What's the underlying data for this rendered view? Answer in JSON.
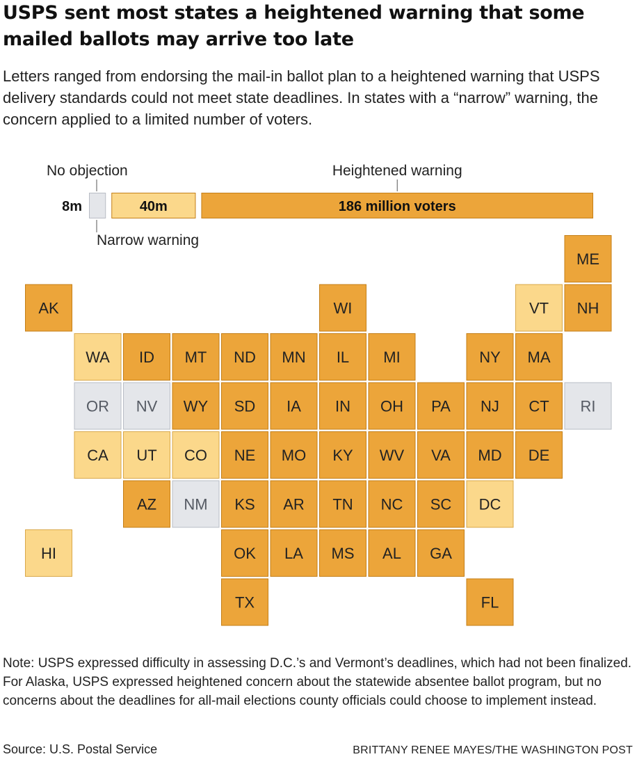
{
  "title": "USPS sent most states a heightened warning that some mailed ballots may arrive too late",
  "subtitle": "Letters ranged from endorsing the mail-in ballot plan to a heightened warning that USPS delivery standards could not meet state deadlines. In states with a “narrow” warning, the concern applied to a limited number of voters.",
  "note": "Note: USPS expressed difficulty in assessing D.C.’s and Vermont’s deadlines, which had not been finalized. For Alaska, USPS expressed heightened concern about the statewide absentee ballot program, but no concerns about the deadlines for all-mail elections county officials could choose to implement instead.",
  "source": "Source: U.S. Postal Service",
  "credit": "BRITTANY RENEE MAYES/THE WASHINGTON POST",
  "chart_data": {
    "type": "tile-map",
    "colors": {
      "none": "#e4e6ea",
      "narrow": "#fbd88b",
      "heightened": "#eca53a"
    },
    "summary": [
      {
        "key": "none",
        "name": "No objection",
        "value": 8,
        "label": "8m"
      },
      {
        "key": "narrow",
        "name": "Narrow warning",
        "value": 40,
        "label": "40m"
      },
      {
        "key": "heightened",
        "name": "Heightened warning",
        "value": 186,
        "label": "186 million voters"
      }
    ],
    "states": [
      {
        "id": "ME",
        "col": 11,
        "row": 0,
        "cat": "heightened"
      },
      {
        "id": "AK",
        "col": 0,
        "row": 1,
        "cat": "heightened"
      },
      {
        "id": "WI",
        "col": 6,
        "row": 1,
        "cat": "heightened"
      },
      {
        "id": "VT",
        "col": 10,
        "row": 1,
        "cat": "narrow"
      },
      {
        "id": "NH",
        "col": 11,
        "row": 1,
        "cat": "heightened"
      },
      {
        "id": "WA",
        "col": 1,
        "row": 2,
        "cat": "narrow"
      },
      {
        "id": "ID",
        "col": 2,
        "row": 2,
        "cat": "heightened"
      },
      {
        "id": "MT",
        "col": 3,
        "row": 2,
        "cat": "heightened"
      },
      {
        "id": "ND",
        "col": 4,
        "row": 2,
        "cat": "heightened"
      },
      {
        "id": "MN",
        "col": 5,
        "row": 2,
        "cat": "heightened"
      },
      {
        "id": "IL",
        "col": 6,
        "row": 2,
        "cat": "heightened"
      },
      {
        "id": "MI",
        "col": 7,
        "row": 2,
        "cat": "heightened"
      },
      {
        "id": "NY",
        "col": 9,
        "row": 2,
        "cat": "heightened"
      },
      {
        "id": "MA",
        "col": 10,
        "row": 2,
        "cat": "heightened"
      },
      {
        "id": "OR",
        "col": 1,
        "row": 3,
        "cat": "none"
      },
      {
        "id": "NV",
        "col": 2,
        "row": 3,
        "cat": "none"
      },
      {
        "id": "WY",
        "col": 3,
        "row": 3,
        "cat": "heightened"
      },
      {
        "id": "SD",
        "col": 4,
        "row": 3,
        "cat": "heightened"
      },
      {
        "id": "IA",
        "col": 5,
        "row": 3,
        "cat": "heightened"
      },
      {
        "id": "IN",
        "col": 6,
        "row": 3,
        "cat": "heightened"
      },
      {
        "id": "OH",
        "col": 7,
        "row": 3,
        "cat": "heightened"
      },
      {
        "id": "PA",
        "col": 8,
        "row": 3,
        "cat": "heightened"
      },
      {
        "id": "NJ",
        "col": 9,
        "row": 3,
        "cat": "heightened"
      },
      {
        "id": "CT",
        "col": 10,
        "row": 3,
        "cat": "heightened"
      },
      {
        "id": "RI",
        "col": 11,
        "row": 3,
        "cat": "none"
      },
      {
        "id": "CA",
        "col": 1,
        "row": 4,
        "cat": "narrow"
      },
      {
        "id": "UT",
        "col": 2,
        "row": 4,
        "cat": "narrow"
      },
      {
        "id": "CO",
        "col": 3,
        "row": 4,
        "cat": "narrow"
      },
      {
        "id": "NE",
        "col": 4,
        "row": 4,
        "cat": "heightened"
      },
      {
        "id": "MO",
        "col": 5,
        "row": 4,
        "cat": "heightened"
      },
      {
        "id": "KY",
        "col": 6,
        "row": 4,
        "cat": "heightened"
      },
      {
        "id": "WV",
        "col": 7,
        "row": 4,
        "cat": "heightened"
      },
      {
        "id": "VA",
        "col": 8,
        "row": 4,
        "cat": "heightened"
      },
      {
        "id": "MD",
        "col": 9,
        "row": 4,
        "cat": "heightened"
      },
      {
        "id": "DE",
        "col": 10,
        "row": 4,
        "cat": "heightened"
      },
      {
        "id": "AZ",
        "col": 2,
        "row": 5,
        "cat": "heightened"
      },
      {
        "id": "NM",
        "col": 3,
        "row": 5,
        "cat": "none"
      },
      {
        "id": "KS",
        "col": 4,
        "row": 5,
        "cat": "heightened"
      },
      {
        "id": "AR",
        "col": 5,
        "row": 5,
        "cat": "heightened"
      },
      {
        "id": "TN",
        "col": 6,
        "row": 5,
        "cat": "heightened"
      },
      {
        "id": "NC",
        "col": 7,
        "row": 5,
        "cat": "heightened"
      },
      {
        "id": "SC",
        "col": 8,
        "row": 5,
        "cat": "heightened"
      },
      {
        "id": "DC",
        "col": 9,
        "row": 5,
        "cat": "narrow"
      },
      {
        "id": "HI",
        "col": 0,
        "row": 6,
        "cat": "narrow"
      },
      {
        "id": "OK",
        "col": 4,
        "row": 6,
        "cat": "heightened"
      },
      {
        "id": "LA",
        "col": 5,
        "row": 6,
        "cat": "heightened"
      },
      {
        "id": "MS",
        "col": 6,
        "row": 6,
        "cat": "heightened"
      },
      {
        "id": "AL",
        "col": 7,
        "row": 6,
        "cat": "heightened"
      },
      {
        "id": "GA",
        "col": 8,
        "row": 6,
        "cat": "heightened"
      },
      {
        "id": "TX",
        "col": 4,
        "row": 7,
        "cat": "heightened"
      },
      {
        "id": "FL",
        "col": 9,
        "row": 7,
        "cat": "heightened"
      }
    ]
  }
}
